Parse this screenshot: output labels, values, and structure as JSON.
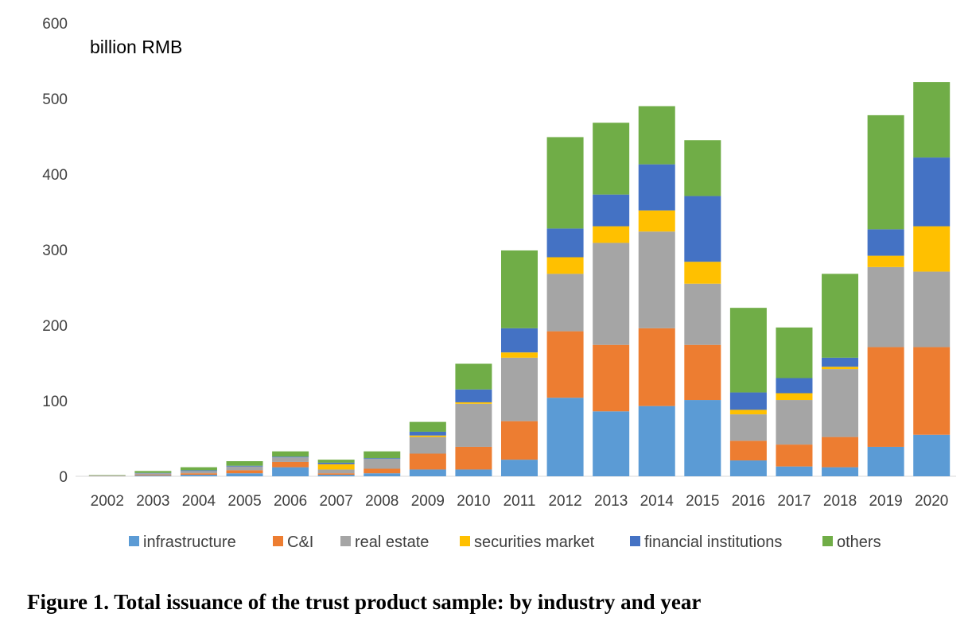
{
  "caption": "Figure 1. Total issuance of the trust product sample: by industry and year",
  "chart_data": {
    "type": "bar",
    "stacked": true,
    "ylabel": "billion RMB",
    "ylim": [
      0,
      600
    ],
    "yticks": [
      0,
      100,
      200,
      300,
      400,
      500,
      600
    ],
    "grid": false,
    "legend_position": "bottom",
    "categories": [
      "2002",
      "2003",
      "2004",
      "2005",
      "2006",
      "2007",
      "2008",
      "2009",
      "2010",
      "2011",
      "2012",
      "2013",
      "2014",
      "2015",
      "2016",
      "2017",
      "2018",
      "2019",
      "2020"
    ],
    "series": [
      {
        "name": "infrastructure",
        "color": "#5B9BD5",
        "values": [
          0.3,
          1,
          2,
          4,
          12,
          2,
          4,
          9,
          9,
          22,
          104,
          86,
          93,
          101,
          21,
          13,
          12,
          39,
          55
        ]
      },
      {
        "name": "C&I",
        "color": "#ED7D31",
        "values": [
          0.2,
          1,
          2,
          4,
          7,
          2,
          6,
          21,
          30,
          51,
          88,
          88,
          103,
          73,
          26,
          29,
          40,
          132,
          116
        ]
      },
      {
        "name": "real estate",
        "color": "#A5A5A5",
        "values": [
          0.5,
          2,
          3,
          5,
          6,
          5,
          13,
          22,
          57,
          84,
          76,
          135,
          128,
          81,
          35,
          59,
          90,
          106,
          100
        ]
      },
      {
        "name": "securities market",
        "color": "#FFC000",
        "values": [
          0,
          0,
          0,
          0,
          0,
          7,
          0,
          2,
          2,
          7,
          22,
          22,
          28,
          29,
          6,
          9,
          3,
          15,
          60
        ]
      },
      {
        "name": "financial institutions",
        "color": "#4472C4",
        "values": [
          0,
          0.5,
          1,
          1,
          1,
          2,
          1,
          5,
          17,
          32,
          38,
          42,
          61,
          87,
          23,
          20,
          12,
          35,
          91
        ]
      },
      {
        "name": "others",
        "color": "#70AD47",
        "values": [
          0.5,
          2.5,
          4,
          6,
          7,
          4,
          9,
          13,
          34,
          103,
          121,
          95,
          77,
          74,
          112,
          67,
          111,
          151,
          100
        ]
      }
    ]
  }
}
